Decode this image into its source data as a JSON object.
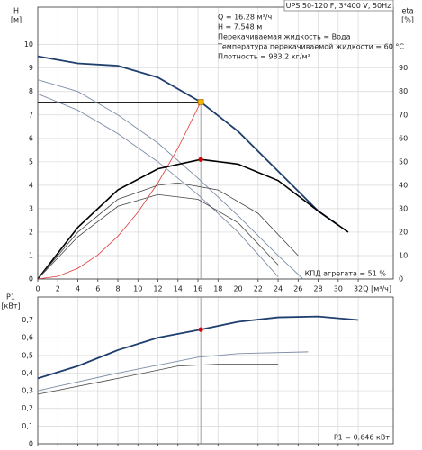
{
  "chart_data": [
    {
      "type": "line",
      "title": "UPS 50-120 F, 3*400 V, 50Hz",
      "annotations": [
        "Q = 16.28 м³/ч",
        "H = 7.548 м",
        "Перекачиваемая жидкость = Вода",
        "Температура перекачиваемой жидкости = 60 °C",
        "Плотность = 983.2 кг/м³"
      ],
      "efficiency_label": "КПД агрегата = 51 %",
      "y_label": [
        "H",
        "[м]"
      ],
      "y2_label": [
        "eta",
        "[%]"
      ],
      "x_label": "Q [м³/ч]",
      "xlim": [
        0,
        35.5
      ],
      "xticks": [
        0,
        2,
        4,
        6,
        8,
        10,
        12,
        14,
        16,
        18,
        20,
        22,
        24,
        26,
        28,
        30,
        32
      ],
      "ylim": [
        0,
        11.6
      ],
      "yticks": [
        0,
        1,
        2,
        3,
        4,
        5,
        6,
        7,
        8,
        9,
        10
      ],
      "y2lim": [
        0,
        116
      ],
      "y2ticks": [
        0,
        10,
        20,
        30,
        40,
        50,
        60,
        70,
        80,
        90
      ],
      "grid": true,
      "operating_point": {
        "x": 16.28,
        "y": 7.548,
        "y2": 51
      },
      "series": [
        {
          "color": "#1f3f6e",
          "width": 1.8,
          "x": [
            0,
            4,
            8,
            12,
            16.28,
            20,
            24,
            28,
            30
          ],
          "values": [
            9.5,
            9.2,
            9.1,
            8.6,
            7.548,
            6.3,
            4.6,
            2.9,
            2.3
          ]
        },
        {
          "color": "#7d8ea6",
          "width": 0.9,
          "x": [
            0,
            4,
            8,
            12,
            16,
            20,
            24,
            26.5
          ],
          "values": [
            8.5,
            8.0,
            7.0,
            5.8,
            4.3,
            2.7,
            1.0,
            0
          ]
        },
        {
          "color": "#7d8ea6",
          "width": 0.9,
          "x": [
            0,
            4,
            8,
            12,
            16,
            20,
            24
          ],
          "values": [
            7.9,
            7.2,
            6.2,
            5.0,
            3.6,
            2.0,
            0.1
          ]
        },
        {
          "color": "#e03a3a",
          "width": 0.8,
          "x": [
            0,
            2,
            4,
            6,
            8,
            10,
            12,
            14,
            16.28
          ],
          "values": [
            0,
            0.114,
            0.456,
            1.025,
            1.823,
            2.848,
            4.101,
            5.582,
            7.548
          ]
        },
        {
          "color": "#000000",
          "width": 1.6,
          "axis": "y2",
          "x": [
            0,
            4,
            8,
            12,
            16.28,
            20,
            24,
            28,
            31
          ],
          "values": [
            0,
            22,
            38,
            47,
            51,
            49,
            42,
            29,
            20
          ]
        },
        {
          "color": "#444444",
          "width": 0.8,
          "axis": "y2",
          "x": [
            0,
            4,
            8,
            12,
            14,
            18,
            22,
            26
          ],
          "values": [
            0,
            20,
            34,
            40,
            41,
            38,
            28,
            10
          ]
        },
        {
          "color": "#444444",
          "width": 0.8,
          "axis": "y2",
          "x": [
            0,
            4,
            8,
            12,
            16,
            20,
            24
          ],
          "values": [
            0,
            18,
            31,
            36,
            34,
            24,
            6
          ]
        }
      ]
    },
    {
      "type": "line",
      "y_label": [
        "P1",
        "[кВт]"
      ],
      "power_label": "P1 = 0.646 кВт",
      "xlim": [
        0,
        35.5
      ],
      "xticks": [
        0,
        2,
        4,
        6,
        8,
        10,
        12,
        14,
        16,
        18,
        20,
        22,
        24,
        26,
        28,
        30,
        32
      ],
      "ylim": [
        0,
        0.83
      ],
      "yticks": [
        {
          "value": 0,
          "label": "0"
        },
        {
          "value": 0.1,
          "label": "0,1"
        },
        {
          "value": 0.2,
          "label": "0,2"
        },
        {
          "value": 0.3,
          "label": "0,3"
        },
        {
          "value": 0.4,
          "label": "0,4"
        },
        {
          "value": 0.5,
          "label": "0,5"
        },
        {
          "value": 0.6,
          "label": "0,6"
        },
        {
          "value": 0.7,
          "label": "0,7"
        }
      ],
      "grid": true,
      "operating_point": {
        "x": 16.28,
        "y": 0.646
      },
      "series": [
        {
          "color": "#1f3f6e",
          "width": 1.8,
          "x": [
            0,
            4,
            8,
            12,
            16.28,
            20,
            24,
            28,
            32
          ],
          "values": [
            0.37,
            0.44,
            0.53,
            0.6,
            0.646,
            0.69,
            0.715,
            0.72,
            0.7
          ]
        },
        {
          "color": "#7d8ea6",
          "width": 0.9,
          "x": [
            0,
            8,
            16,
            20,
            27
          ],
          "values": [
            0.3,
            0.4,
            0.49,
            0.51,
            0.52
          ]
        },
        {
          "color": "#444444",
          "width": 0.8,
          "x": [
            0,
            8,
            14,
            18,
            24
          ],
          "values": [
            0.28,
            0.37,
            0.44,
            0.45,
            0.45
          ]
        }
      ]
    }
  ]
}
